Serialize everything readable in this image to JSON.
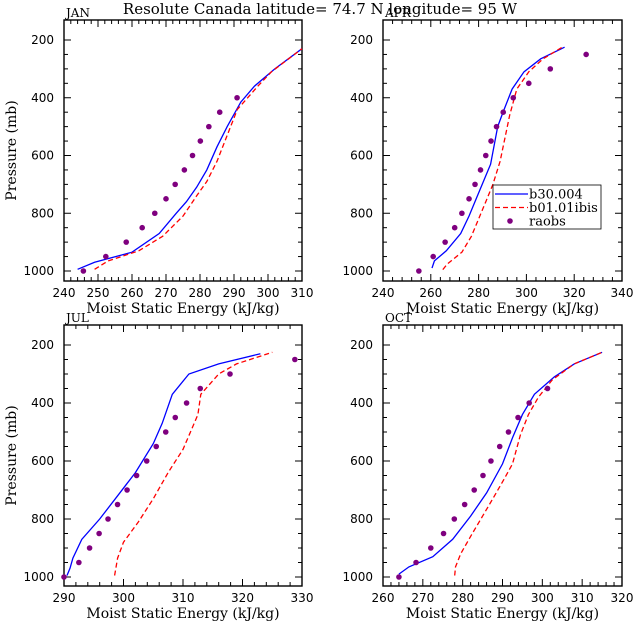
{
  "figure_title": "Resolute Canada   latitude= 74.7 N longitude= 95 W",
  "colors": {
    "model1": "#0000ff",
    "model2": "#ff0000",
    "obs": "#7f007f"
  },
  "chart_data": [
    {
      "type": "line",
      "panel": "JAN",
      "title": "JAN",
      "xlabel": "Moist Static Energy (kJ/kg)",
      "ylabel": "Pressure (mb)",
      "xlim": [
        240,
        310
      ],
      "ylim": [
        1000,
        200
      ],
      "xticks": [
        240,
        250,
        260,
        270,
        280,
        290,
        300,
        310
      ],
      "yticks": [
        200,
        400,
        600,
        800,
        1000
      ],
      "show_xlabel": false,
      "show_ylabel": true,
      "legend": null,
      "series": [
        {
          "name": "b30.004",
          "style": "solid",
          "color_key": "model1",
          "points": [
            [
              244,
              994
            ],
            [
              249,
              970
            ],
            [
              260,
              935
            ],
            [
              268,
              870
            ],
            [
              273,
              800
            ],
            [
              276,
              760
            ],
            [
              279,
              710
            ],
            [
              282,
              650
            ],
            [
              285,
              570
            ],
            [
              288,
              500
            ],
            [
              292,
              415
            ],
            [
              296,
              360
            ],
            [
              302,
              300
            ],
            [
              310,
              230
            ]
          ]
        },
        {
          "name": "b01.01ibis",
          "style": "dashed",
          "color_key": "model2",
          "points": [
            [
              249,
              994
            ],
            [
              253,
              965
            ],
            [
              262,
              930
            ],
            [
              269,
              880
            ],
            [
              275,
              810
            ],
            [
              279,
              740
            ],
            [
              282,
              690
            ],
            [
              285,
              620
            ],
            [
              288,
              530
            ],
            [
              291,
              440
            ],
            [
              294,
              400
            ],
            [
              297,
              360
            ],
            [
              301,
              310
            ],
            [
              310,
              230
            ]
          ]
        },
        {
          "name": "raobs",
          "style": "markers",
          "color_key": "obs",
          "points": [
            [
              245.7,
              1000
            ],
            [
              252.3,
              950
            ],
            [
              258.3,
              900
            ],
            [
              263,
              850
            ],
            [
              266.7,
              800
            ],
            [
              270,
              750
            ],
            [
              272.7,
              700
            ],
            [
              275.4,
              650
            ],
            [
              277.8,
              600
            ],
            [
              280.1,
              550
            ],
            [
              282.6,
              500
            ],
            [
              285.8,
              450
            ],
            [
              290.9,
              400
            ]
          ]
        }
      ]
    },
    {
      "type": "line",
      "panel": "APR",
      "title": "APR",
      "xlabel": "Moist Static Energy (kJ/kg)",
      "ylabel": "Pressure (mb)",
      "xlim": [
        240,
        340
      ],
      "ylim": [
        1000,
        200
      ],
      "xticks": [
        240,
        260,
        280,
        300,
        320,
        340
      ],
      "yticks": [
        200,
        400,
        600,
        800,
        1000
      ],
      "show_xlabel": true,
      "show_ylabel": false,
      "legend": {
        "placement": "middle-right",
        "entries": [
          "b30.004",
          "b01.01ibis",
          "raobs"
        ]
      },
      "series": [
        {
          "name": "b30.004",
          "style": "solid",
          "color_key": "model1",
          "points": [
            [
              260.5,
              990
            ],
            [
              261.5,
              965
            ],
            [
              266.5,
              930
            ],
            [
              272.5,
              870
            ],
            [
              276,
              810
            ],
            [
              279,
              750
            ],
            [
              282,
              690
            ],
            [
              285,
              630
            ],
            [
              288,
              500
            ],
            [
              290,
              455
            ],
            [
              294,
              370
            ],
            [
              299,
              310
            ],
            [
              306,
              265
            ],
            [
              316,
              225
            ]
          ]
        },
        {
          "name": "b01.01ibis",
          "style": "dashed",
          "color_key": "model2",
          "points": [
            [
              265,
              995
            ],
            [
              267,
              975
            ],
            [
              273,
              935
            ],
            [
              277,
              880
            ],
            [
              280,
              820
            ],
            [
              283,
              760
            ],
            [
              286,
              700
            ],
            [
              289,
              620
            ],
            [
              291,
              540
            ],
            [
              293,
              460
            ],
            [
              296,
              370
            ],
            [
              301,
              310
            ],
            [
              307,
              265
            ],
            [
              315,
              225
            ]
          ]
        },
        {
          "name": "raobs",
          "style": "markers",
          "color_key": "obs",
          "points": [
            [
              255,
              1000
            ],
            [
              261,
              950
            ],
            [
              266,
              900
            ],
            [
              270,
              850
            ],
            [
              273,
              800
            ],
            [
              276,
              750
            ],
            [
              278.5,
              700
            ],
            [
              280.8,
              650
            ],
            [
              283,
              600
            ],
            [
              285.2,
              550
            ],
            [
              287.5,
              500
            ],
            [
              290.3,
              450
            ],
            [
              294.5,
              400
            ],
            [
              301,
              350
            ],
            [
              310,
              300
            ],
            [
              325,
              250
            ]
          ]
        }
      ]
    },
    {
      "type": "line",
      "panel": "JUL",
      "title": "JUL",
      "xlabel": "Moist Static Energy (kJ/kg)",
      "ylabel": "Pressure (mb)",
      "xlim": [
        290,
        330
      ],
      "ylim": [
        1000,
        200
      ],
      "xticks": [
        290,
        300,
        310,
        320,
        330
      ],
      "yticks": [
        200,
        400,
        600,
        800,
        1000
      ],
      "show_xlabel": true,
      "show_ylabel": true,
      "legend": null,
      "series": [
        {
          "name": "b30.004",
          "style": "solid",
          "color_key": "model1",
          "points": [
            [
              290.5,
              995
            ],
            [
              291,
              970
            ],
            [
              291.5,
              935
            ],
            [
              293,
              870
            ],
            [
              296,
              800
            ],
            [
              299,
              720
            ],
            [
              302,
              640
            ],
            [
              305,
              540
            ],
            [
              306.5,
              470
            ],
            [
              308.2,
              370
            ],
            [
              311,
              300
            ],
            [
              316,
              265
            ],
            [
              323,
              230
            ]
          ]
        },
        {
          "name": "b01.01ibis",
          "style": "dashed",
          "color_key": "model2",
          "points": [
            [
              298.5,
              995
            ],
            [
              299,
              935
            ],
            [
              300,
              880
            ],
            [
              302.5,
              810
            ],
            [
              305,
              730
            ],
            [
              307.5,
              640
            ],
            [
              310,
              560
            ],
            [
              312.5,
              440
            ],
            [
              313,
              370
            ],
            [
              316,
              300
            ],
            [
              319,
              265
            ],
            [
              325,
              225
            ]
          ]
        },
        {
          "name": "raobs",
          "style": "markers",
          "color_key": "obs",
          "points": [
            [
              290,
              1000
            ],
            [
              292.5,
              950
            ],
            [
              294.3,
              900
            ],
            [
              295.9,
              850
            ],
            [
              297.4,
              800
            ],
            [
              299,
              750
            ],
            [
              300.6,
              700
            ],
            [
              302.2,
              650
            ],
            [
              303.9,
              600
            ],
            [
              305.5,
              550
            ],
            [
              307.1,
              500
            ],
            [
              308.7,
              450
            ],
            [
              310.6,
              400
            ],
            [
              312.9,
              350
            ],
            [
              317.9,
              300
            ],
            [
              328.8,
              250
            ]
          ]
        }
      ]
    },
    {
      "type": "line",
      "panel": "OCT",
      "title": "OCT",
      "xlabel": "Moist Static Energy (kJ/kg)",
      "ylabel": "Pressure (mb)",
      "xlim": [
        260,
        320
      ],
      "ylim": [
        1000,
        200
      ],
      "xticks": [
        260,
        270,
        280,
        290,
        300,
        310,
        320
      ],
      "yticks": [
        200,
        400,
        600,
        800,
        1000
      ],
      "show_xlabel": true,
      "show_ylabel": false,
      "legend": null,
      "series": [
        {
          "name": "b30.004",
          "style": "solid",
          "color_key": "model1",
          "points": [
            [
              264,
              990
            ],
            [
              266.5,
              965
            ],
            [
              272.5,
              930
            ],
            [
              277.5,
              870
            ],
            [
              282,
              790
            ],
            [
              286,
              710
            ],
            [
              290,
              610
            ],
            [
              292.5,
              520
            ],
            [
              295,
              440
            ],
            [
              298,
              370
            ],
            [
              303,
              310
            ],
            [
              308,
              265
            ],
            [
              315,
              225
            ]
          ]
        },
        {
          "name": "b01.01ibis",
          "style": "dashed",
          "color_key": "model2",
          "points": [
            [
              278,
              995
            ],
            [
              278.2,
              965
            ],
            [
              279.5,
              920
            ],
            [
              282,
              860
            ],
            [
              285,
              790
            ],
            [
              288,
              720
            ],
            [
              290.5,
              660
            ],
            [
              292.5,
              610
            ],
            [
              294.5,
              510
            ],
            [
              296.5,
              440
            ],
            [
              299,
              380
            ],
            [
              302.5,
              320
            ],
            [
              308,
              265
            ],
            [
              315,
              225
            ]
          ]
        },
        {
          "name": "raobs",
          "style": "markers",
          "color_key": "obs",
          "points": [
            [
              264,
              1000
            ],
            [
              268.3,
              950
            ],
            [
              272,
              900
            ],
            [
              275.2,
              850
            ],
            [
              277.9,
              800
            ],
            [
              280.5,
              750
            ],
            [
              282.9,
              700
            ],
            [
              285.1,
              650
            ],
            [
              287.1,
              600
            ],
            [
              289.3,
              550
            ],
            [
              291.5,
              500
            ],
            [
              293.9,
              450
            ],
            [
              296.7,
              400
            ],
            [
              301.3,
              350
            ]
          ]
        }
      ]
    }
  ]
}
